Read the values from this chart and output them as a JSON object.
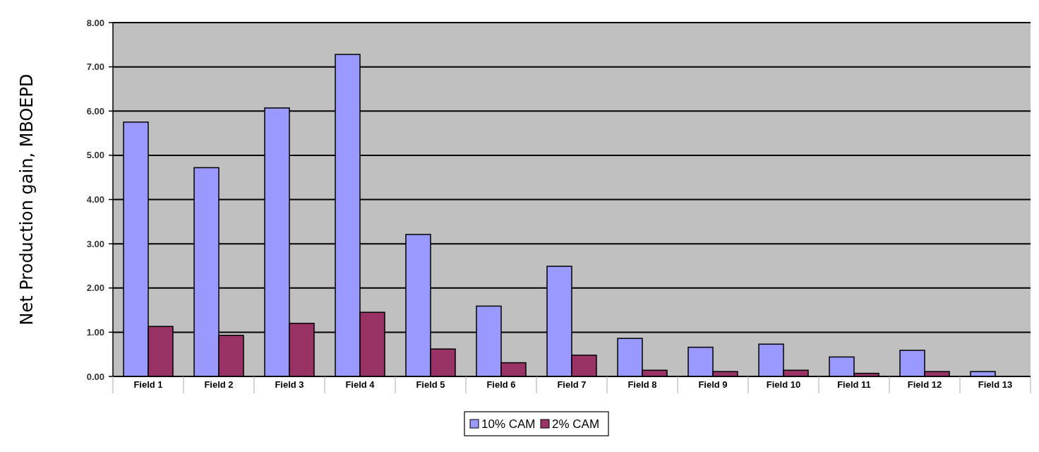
{
  "chart_data": {
    "type": "bar",
    "ylabel": "Net Production gain, MBOEPD",
    "categories": [
      "Field 1",
      "Field 2",
      "Field 3",
      "Field 4",
      "Field 5",
      "Field 6",
      "Field 7",
      "Field 8",
      "Field 9",
      "Field 10",
      "Field 11",
      "Field 12",
      "Field 13"
    ],
    "series": [
      {
        "name": "10% CAM",
        "color": "#9999ff",
        "values": [
          5.75,
          4.72,
          6.07,
          7.28,
          3.21,
          1.59,
          2.49,
          0.86,
          0.66,
          0.73,
          0.44,
          0.59,
          0.11
        ]
      },
      {
        "name": "2% CAM",
        "color": "#993366",
        "values": [
          1.13,
          0.93,
          1.2,
          1.45,
          0.62,
          0.31,
          0.48,
          0.14,
          0.11,
          0.14,
          0.07,
          0.11,
          null
        ]
      }
    ],
    "ylim": [
      0,
      8
    ],
    "yticks": [
      {
        "value": 0,
        "label": "0.00"
      },
      {
        "value": 1,
        "label": "1.00"
      },
      {
        "value": 2,
        "label": "2.00"
      },
      {
        "value": 3,
        "label": "3.00"
      },
      {
        "value": 4,
        "label": "4.00"
      },
      {
        "value": 5,
        "label": "5.00"
      },
      {
        "value": 6,
        "label": "6.00"
      },
      {
        "value": 7,
        "label": "7.00"
      },
      {
        "value": 8,
        "label": "8.00"
      }
    ],
    "grid": "y",
    "legend": "bottom"
  }
}
